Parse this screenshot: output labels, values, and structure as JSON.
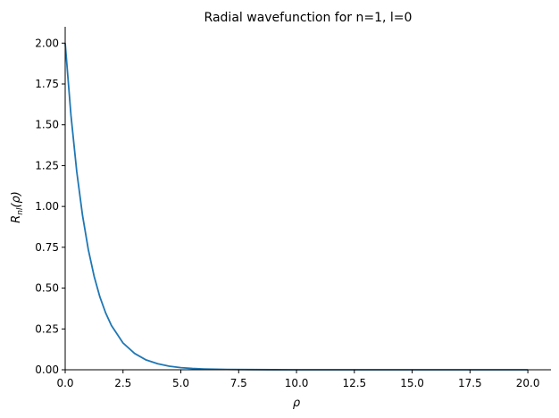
{
  "chart_data": {
    "type": "line",
    "title": "Radial wavefunction for n=1, l=0",
    "xlabel": "ρ",
    "ylabel": "R_nl(ρ)",
    "ylabel_parts": {
      "main": "R",
      "sub": "nl",
      "rest": "(ρ)"
    },
    "xlim": [
      0,
      21
    ],
    "ylim": [
      0,
      2.1
    ],
    "xticks": [
      {
        "value": 0,
        "label": "0.0"
      },
      {
        "value": 2.5,
        "label": "2.5"
      },
      {
        "value": 5,
        "label": "5.0"
      },
      {
        "value": 7.5,
        "label": "7.5"
      },
      {
        "value": 10,
        "label": "10.0"
      },
      {
        "value": 12.5,
        "label": "12.5"
      },
      {
        "value": 15,
        "label": "15.0"
      },
      {
        "value": 17.5,
        "label": "17.5"
      },
      {
        "value": 20,
        "label": "20.0"
      }
    ],
    "yticks": [
      {
        "value": 0,
        "label": "0.00"
      },
      {
        "value": 0.25,
        "label": "0.25"
      },
      {
        "value": 0.5,
        "label": "0.50"
      },
      {
        "value": 0.75,
        "label": "0.75"
      },
      {
        "value": 1,
        "label": "1.00"
      },
      {
        "value": 1.25,
        "label": "1.25"
      },
      {
        "value": 1.5,
        "label": "1.50"
      },
      {
        "value": 1.75,
        "label": "1.75"
      },
      {
        "value": 2,
        "label": "2.00"
      }
    ],
    "grid": false,
    "series": [
      {
        "color": "#1f77b4",
        "x": [
          0,
          0.25,
          0.5,
          0.75,
          1,
          1.25,
          1.5,
          1.75,
          2,
          2.5,
          3,
          3.5,
          4,
          4.5,
          5,
          5.5,
          6,
          7,
          8,
          9,
          10,
          12,
          14,
          16,
          18,
          20
        ],
        "y": [
          2.0,
          1.558,
          1.213,
          0.945,
          0.736,
          0.573,
          0.446,
          0.348,
          0.271,
          0.164,
          0.1,
          0.06,
          0.037,
          0.022,
          0.013,
          0.008,
          0.005,
          0.002,
          0.001,
          0.0002,
          0.0001,
          0.0,
          0.0,
          0.0,
          0.0,
          0.0
        ]
      }
    ]
  }
}
